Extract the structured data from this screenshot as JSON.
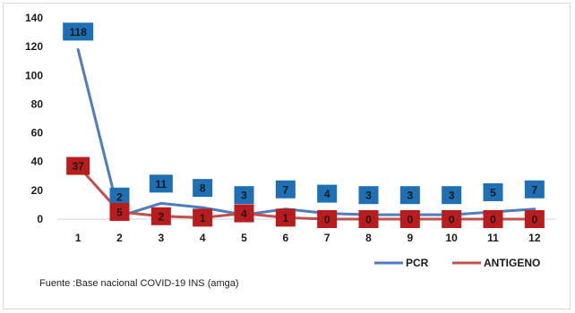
{
  "chart_data": {
    "type": "line",
    "categories": [
      "1",
      "2",
      "3",
      "4",
      "5",
      "6",
      "7",
      "8",
      "9",
      "10",
      "11",
      "12"
    ],
    "series": [
      {
        "name": "PCR",
        "color": "#4f7bbf",
        "label_bg": "#1f6fb5",
        "values": [
          118,
          2,
          11,
          8,
          3,
          7,
          4,
          3,
          3,
          3,
          5,
          7
        ]
      },
      {
        "name": "ANTIGENO",
        "color": "#c0504d",
        "label_bg": "#b81c1c",
        "values": [
          37,
          5,
          2,
          1,
          4,
          1,
          0,
          0,
          0,
          0,
          0,
          0
        ]
      }
    ],
    "ylim": [
      0,
      140
    ],
    "yticks": [
      "0",
      "20",
      "40",
      "60",
      "80",
      "100",
      "120",
      "140"
    ],
    "grid": false,
    "legend_position": "bottom-right",
    "source": "Fuente :Base nacional COVID-19 INS (amga)"
  }
}
